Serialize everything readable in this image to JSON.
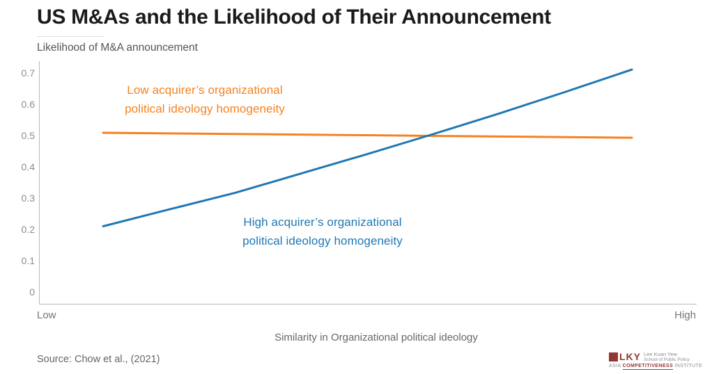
{
  "chart_data": {
    "type": "line",
    "title": "US M&As and the Likelihood of Their Announcement",
    "subtitle": "Likelihood of M&A announcement",
    "xlabel": "Similarity in Organizational political ideology",
    "ylabel": "Likelihood of M&A announcement",
    "x_axis": {
      "left_label": "Low",
      "right_label": "High",
      "range": [
        0,
        1
      ]
    },
    "ylim": [
      0,
      0.7
    ],
    "yticks": [
      0,
      0.1,
      0.2,
      0.3,
      0.4,
      0.5,
      0.6,
      0.7
    ],
    "grid": false,
    "legend_position": "inline-annotations",
    "x": [
      0,
      0.125,
      0.25,
      0.375,
      0.5,
      0.625,
      0.75,
      0.875,
      1
    ],
    "series": [
      {
        "name": "Low acquirer’s organizational political ideology homogeneity",
        "color": "#f5821f",
        "values": [
          0.509,
          0.507,
          0.505,
          0.503,
          0.501,
          0.499,
          0.497,
          0.495,
          0.493
        ]
      },
      {
        "name": "High acquirer’s organizational political ideology homogeneity",
        "color": "#1f77b4",
        "values": [
          0.21,
          0.264,
          0.317,
          0.379,
          0.441,
          0.505,
          0.571,
          0.64,
          0.711
        ]
      }
    ]
  },
  "annotations": {
    "low": {
      "line1": "Low acquirer’s organizational",
      "line2": "political ideology homogeneity",
      "color": "#f5821f"
    },
    "high": {
      "line1": "High acquirer’s organizational",
      "line2": "political ideology homogeneity",
      "color": "#1f77b4"
    }
  },
  "source": {
    "text": "Source: Chow et al., (2021)"
  },
  "logo": {
    "acronym": "LKY",
    "school_line1": "Lee Kuan Yew",
    "school_line2": "School of Public Policy",
    "institute_prefix": "Asia",
    "institute_highlight": "Competitiveness",
    "institute_suffix": "Institute",
    "brand_color": "#943734"
  }
}
